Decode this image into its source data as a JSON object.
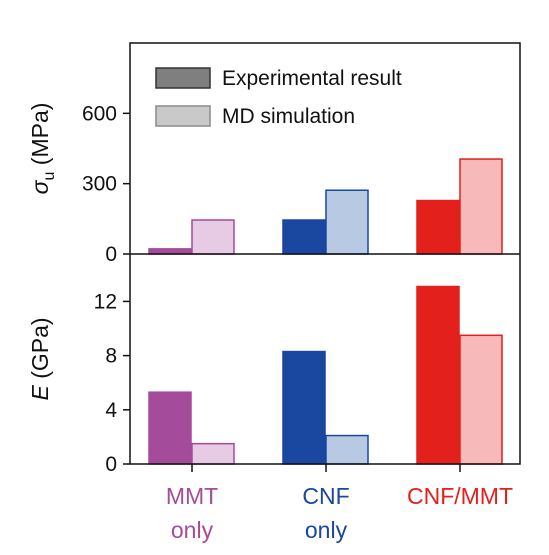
{
  "chart_data": [
    {
      "type": "bar",
      "panel": "top",
      "ylabel": "σu (MPa)",
      "ylabel_symbol": "σ",
      "ylabel_sub": "u",
      "ylabel_unit": " (MPa)",
      "ylim": [
        0,
        900
      ],
      "yticks": [
        0,
        300,
        600
      ],
      "categories": [
        "MMT only",
        "CNF only",
        "CNF/MMT"
      ],
      "series": [
        {
          "name": "Experimental result",
          "values": [
            22,
            145,
            228
          ]
        },
        {
          "name": "MD simulation",
          "values": [
            145,
            272,
            405
          ]
        }
      ],
      "legend": {
        "position": "top-left",
        "entries": [
          "Experimental result",
          "MD simulation"
        ]
      }
    },
    {
      "type": "bar",
      "panel": "bottom",
      "ylabel": "E (GPa)",
      "ylabel_symbol": "E",
      "ylabel_unit": " (GPa)",
      "ylim": [
        0,
        15.5
      ],
      "yticks": [
        0,
        4,
        8,
        12
      ],
      "categories": [
        "MMT only",
        "CNF only",
        "CNF/MMT"
      ],
      "series": [
        {
          "name": "Experimental result",
          "values": [
            5.3,
            8.3,
            13.1
          ]
        },
        {
          "name": "MD simulation",
          "values": [
            1.5,
            2.1,
            9.5
          ]
        }
      ]
    }
  ],
  "x_labels": [
    {
      "line1": "MMT",
      "line2": "only"
    },
    {
      "line1": "CNF",
      "line2": "only"
    },
    {
      "line1": "CNF/MMT",
      "line2": ""
    }
  ],
  "colors": {
    "legend_exp_fill": "#7f7f7f",
    "legend_exp_stroke": "#333333",
    "legend_sim_fill": "#c9c9c9",
    "legend_sim_stroke": "#8a8a8a",
    "categories": [
      {
        "exp": "#a54b9b",
        "sim": "#e7cbe4",
        "sim_stroke": "#a54b9b",
        "label": "#a54b9b"
      },
      {
        "exp": "#1a47a0",
        "sim": "#b7c9e3",
        "sim_stroke": "#1a47a0",
        "label": "#1a47a0"
      },
      {
        "exp": "#e3201b",
        "sim": "#f7b9b9",
        "sim_stroke": "#e3201b",
        "label": "#e3201b"
      }
    ]
  }
}
